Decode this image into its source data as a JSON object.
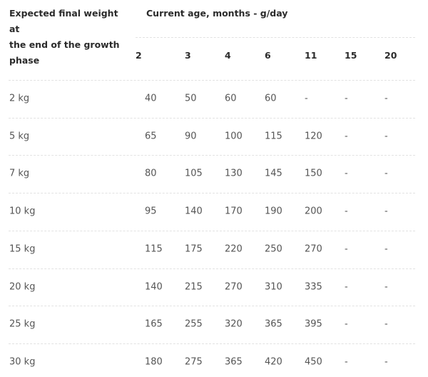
{
  "header": {
    "row_label_lines": [
      "Expected final weight",
      "at",
      "the end of the growth",
      "phase"
    ],
    "group_title": "Current age, months - g/day",
    "ages": [
      "2",
      "3",
      "4",
      "6",
      "11",
      "15",
      "20"
    ]
  },
  "rows": [
    {
      "weight": "2 kg",
      "values": [
        "40",
        "50",
        "60",
        "60",
        "-",
        "-",
        "-"
      ]
    },
    {
      "weight": "5 kg",
      "values": [
        "65",
        "90",
        "100",
        "115",
        "120",
        "-",
        "-"
      ]
    },
    {
      "weight": "7 kg",
      "values": [
        "80",
        "105",
        "130",
        "145",
        "150",
        "-",
        "-"
      ]
    },
    {
      "weight": "10 kg",
      "values": [
        "95",
        "140",
        "170",
        "190",
        "200",
        "-",
        "-"
      ]
    },
    {
      "weight": "15 kg",
      "values": [
        "115",
        "175",
        "220",
        "250",
        "270",
        "-",
        "-"
      ]
    },
    {
      "weight": "20 kg",
      "values": [
        "140",
        "215",
        "270",
        "310",
        "335",
        "-",
        "-"
      ]
    },
    {
      "weight": "25 kg",
      "values": [
        "165",
        "255",
        "320",
        "365",
        "395",
        "-",
        "-"
      ]
    },
    {
      "weight": "30 kg",
      "values": [
        "180",
        "275",
        "365",
        "420",
        "450",
        "-",
        "-"
      ]
    }
  ]
}
